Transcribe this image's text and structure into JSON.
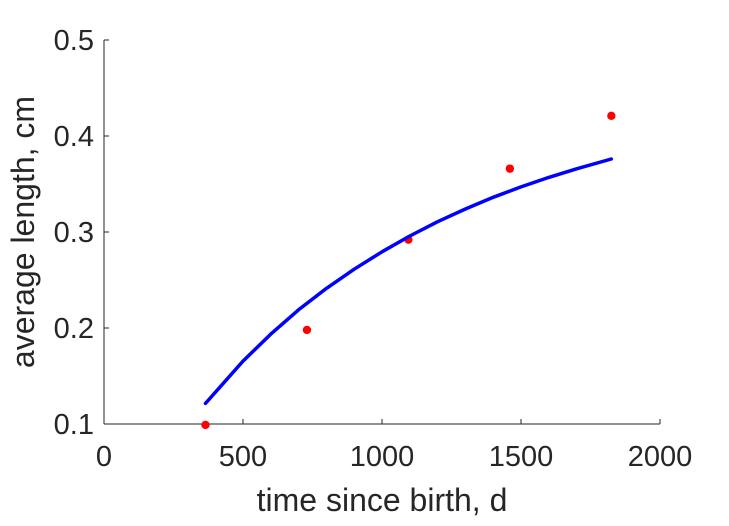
{
  "chart_data": {
    "type": "scatter",
    "title": "",
    "xlabel": "time since birth, d",
    "ylabel": "average length, cm",
    "xlim": [
      0,
      2000
    ],
    "ylim": [
      0.1,
      0.5
    ],
    "x_ticks": [
      0,
      500,
      1000,
      1500,
      2000
    ],
    "y_ticks": [
      0.1,
      0.2,
      0.3,
      0.4,
      0.5
    ],
    "x_tick_labels": [
      "0",
      "500",
      "1000",
      "1500",
      "2000"
    ],
    "y_tick_labels": [
      "0.1",
      "0.2",
      "0.3",
      "0.4",
      "0.5"
    ],
    "grid": false,
    "legend": "none",
    "series": [
      {
        "kind": "points",
        "color": "#ff0000",
        "points": [
          {
            "x": 365,
            "y": 0.099
          },
          {
            "x": 730,
            "y": 0.198
          },
          {
            "x": 1095,
            "y": 0.292
          },
          {
            "x": 1460,
            "y": 0.366
          },
          {
            "x": 1825,
            "y": 0.421
          }
        ]
      },
      {
        "kind": "line",
        "color": "#0000ff",
        "points": [
          {
            "x": 365,
            "y": 0.1215
          },
          {
            "x": 500,
            "y": 0.1655
          },
          {
            "x": 600,
            "y": 0.1936
          },
          {
            "x": 700,
            "y": 0.219
          },
          {
            "x": 800,
            "y": 0.2413
          },
          {
            "x": 900,
            "y": 0.2613
          },
          {
            "x": 1000,
            "y": 0.2794
          },
          {
            "x": 1100,
            "y": 0.2958
          },
          {
            "x": 1200,
            "y": 0.3107
          },
          {
            "x": 1300,
            "y": 0.324
          },
          {
            "x": 1400,
            "y": 0.3361
          },
          {
            "x": 1500,
            "y": 0.347
          },
          {
            "x": 1600,
            "y": 0.3569
          },
          {
            "x": 1700,
            "y": 0.3658
          },
          {
            "x": 1825,
            "y": 0.376
          }
        ]
      }
    ]
  }
}
